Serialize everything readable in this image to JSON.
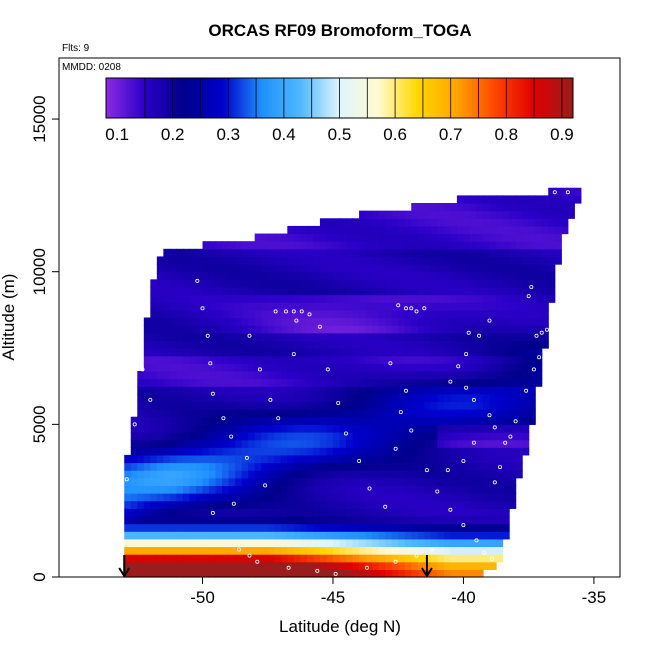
{
  "chart_data": {
    "type": "heatmap",
    "title": "ORCAS RF09 Bromoform_TOGA",
    "annotations": {
      "flights": "Flts: 9",
      "date": "MMDD: 0208"
    },
    "xlabel": "Latitude (deg N)",
    "ylabel": "Altitude (m)",
    "xlim": [
      -55.5,
      -34
    ],
    "ylim": [
      0,
      17000
    ],
    "x_ticks": [
      -50,
      -45,
      -40,
      -35
    ],
    "x_tick_labels": [
      "-50",
      "-45",
      "-40",
      "-35"
    ],
    "y_ticks": [
      0,
      5000,
      10000,
      15000
    ],
    "y_tick_labels": [
      "0",
      "5000",
      "10000",
      "15000"
    ],
    "colorbar": {
      "min": 0.08,
      "max": 0.92,
      "ticks": [
        0.1,
        0.2,
        0.3,
        0.4,
        0.5,
        0.6,
        0.7,
        0.8,
        0.9
      ],
      "tick_labels": [
        "0.1",
        "0.2",
        "0.3",
        "0.4",
        "0.5",
        "0.6",
        "0.7",
        "0.8",
        "0.9"
      ],
      "palette": [
        "#8a2be2",
        "#2b00c8",
        "#00008b",
        "#0000cd",
        "#1e90ff",
        "#4fb8ff",
        "#dff4ff",
        "#fffad0",
        "#ffd700",
        "#ffa500",
        "#ff4500",
        "#e00000",
        "#9b1c1c"
      ]
    },
    "grid": false,
    "field_cell": {
      "dlat": 0.25,
      "dalt": 250
    },
    "envelope": [
      {
        "lat": -53.0,
        "min": 0,
        "max": 3200
      },
      {
        "lat": -52.5,
        "min": 0,
        "max": 5900
      },
      {
        "lat": -52.0,
        "min": 0,
        "max": 9500
      },
      {
        "lat": -51.5,
        "min": 0,
        "max": 10700
      },
      {
        "lat": -50.5,
        "min": 0,
        "max": 10800
      },
      {
        "lat": -49.0,
        "min": 0,
        "max": 11000
      },
      {
        "lat": -47.5,
        "min": 0,
        "max": 11200
      },
      {
        "lat": -46.0,
        "min": 0,
        "max": 11500
      },
      {
        "lat": -44.5,
        "min": 0,
        "max": 11800
      },
      {
        "lat": -43.0,
        "min": 0,
        "max": 12000
      },
      {
        "lat": -41.5,
        "min": 0,
        "max": 12200
      },
      {
        "lat": -40.0,
        "min": 0,
        "max": 12400
      },
      {
        "lat": -39.0,
        "min": 200,
        "max": 12450
      },
      {
        "lat": -38.5,
        "min": 700,
        "max": 12500
      },
      {
        "lat": -38.0,
        "min": 2800,
        "max": 12550
      },
      {
        "lat": -37.5,
        "min": 4400,
        "max": 12600
      },
      {
        "lat": -37.0,
        "min": 6800,
        "max": 12600
      },
      {
        "lat": -36.5,
        "min": 9800,
        "max": 12650
      },
      {
        "lat": -36.0,
        "min": 11600,
        "max": 12700
      },
      {
        "lat": -35.5,
        "min": 12500,
        "max": 12750
      }
    ],
    "sample_points": [
      [
        -52.2,
        10500
      ],
      [
        -52.5,
        8500
      ],
      [
        -52.8,
        7700
      ],
      [
        -52.3,
        6800
      ],
      [
        -52.0,
        5800
      ],
      [
        -52.6,
        5000
      ],
      [
        -53.3,
        4000
      ],
      [
        -52.9,
        3200
      ],
      [
        -53.1,
        3150
      ],
      [
        -50.2,
        9700
      ],
      [
        -50.0,
        8800
      ],
      [
        -49.8,
        7900
      ],
      [
        -49.7,
        7000
      ],
      [
        -49.6,
        6000
      ],
      [
        -49.2,
        5200
      ],
      [
        -48.9,
        4600
      ],
      [
        -48.3,
        3900
      ],
      [
        -47.6,
        3000
      ],
      [
        -48.8,
        2400
      ],
      [
        -49.6,
        2100
      ],
      [
        -48.2,
        7900
      ],
      [
        -47.8,
        6800
      ],
      [
        -47.4,
        5800
      ],
      [
        -47.1,
        5200
      ],
      [
        -47.2,
        8700
      ],
      [
        -46.8,
        8700
      ],
      [
        -46.5,
        8700
      ],
      [
        -46.2,
        8700
      ],
      [
        -45.9,
        8600
      ],
      [
        -46.4,
        8400
      ],
      [
        -46.5,
        7300
      ],
      [
        -45.5,
        8200
      ],
      [
        -45.2,
        6800
      ],
      [
        -44.8,
        5700
      ],
      [
        -44.5,
        4700
      ],
      [
        -44.0,
        3800
      ],
      [
        -43.6,
        2900
      ],
      [
        -43.0,
        2300
      ],
      [
        -42.5,
        8900
      ],
      [
        -42.2,
        8800
      ],
      [
        -42.0,
        8800
      ],
      [
        -41.8,
        8700
      ],
      [
        -41.5,
        8800
      ],
      [
        -42.8,
        7000
      ],
      [
        -42.2,
        6100
      ],
      [
        -42.4,
        5400
      ],
      [
        -42.0,
        4800
      ],
      [
        -42.6,
        4200
      ],
      [
        -41.4,
        3500
      ],
      [
        -41.0,
        2800
      ],
      [
        -40.5,
        2200
      ],
      [
        -40.0,
        1700
      ],
      [
        -39.5,
        1200
      ],
      [
        -39.2,
        800
      ],
      [
        -38.9,
        600
      ],
      [
        -39.8,
        8000
      ],
      [
        -39.4,
        7900
      ],
      [
        -39.9,
        7300
      ],
      [
        -40.2,
        6900
      ],
      [
        -40.5,
        6400
      ],
      [
        -39.9,
        6200
      ],
      [
        -39.6,
        5800
      ],
      [
        -39.0,
        5300
      ],
      [
        -38.8,
        4900
      ],
      [
        -39.6,
        4400
      ],
      [
        -40.0,
        3800
      ],
      [
        -40.6,
        3500
      ],
      [
        -38.8,
        3100
      ],
      [
        -38.6,
        3600
      ],
      [
        -38.4,
        4400
      ],
      [
        -38.2,
        4600
      ],
      [
        -38.0,
        5100
      ],
      [
        -37.6,
        6100
      ],
      [
        -37.3,
        6800
      ],
      [
        -37.1,
        7200
      ],
      [
        -39.0,
        8400
      ],
      [
        -37.0,
        8000
      ],
      [
        -37.2,
        7900
      ],
      [
        -36.8,
        8100
      ],
      [
        -37.4,
        9500
      ],
      [
        -37.5,
        9200
      ],
      [
        -36.5,
        12600
      ],
      [
        -36.0,
        12600
      ],
      [
        -48.6,
        900
      ],
      [
        -48.2,
        700
      ],
      [
        -47.9,
        500
      ],
      [
        -46.7,
        300
      ],
      [
        -45.6,
        200
      ],
      [
        -44.9,
        100
      ],
      [
        -43.7,
        300
      ],
      [
        -42.6,
        500
      ],
      [
        -41.8,
        700
      ],
      [
        -41.2,
        900
      ]
    ],
    "markers": [
      {
        "lat": -53.0,
        "symbol": "down-arrow"
      },
      {
        "lat": -41.4,
        "symbol": "down-arrow"
      }
    ]
  }
}
